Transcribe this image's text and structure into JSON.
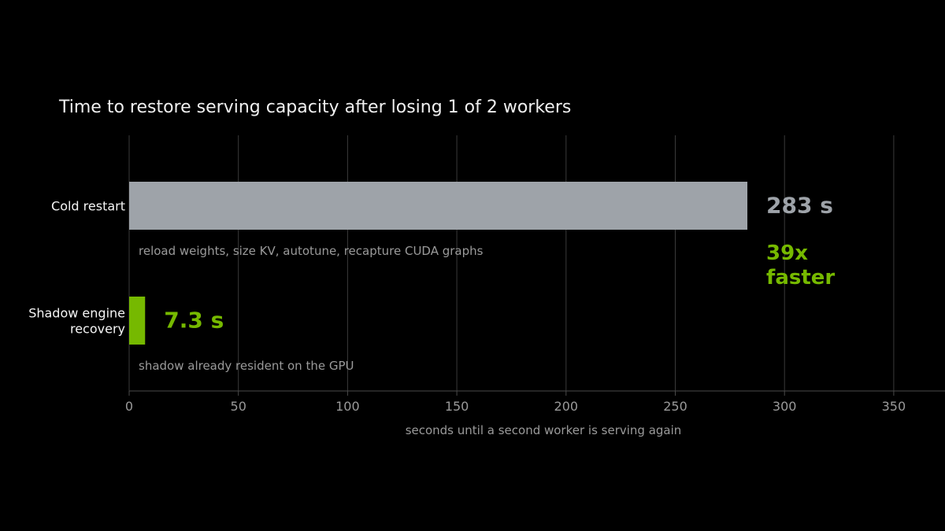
{
  "chart_data": {
    "type": "bar",
    "orientation": "horizontal",
    "title": "Time to restore serving capacity after losing 1 of 2 workers",
    "xlabel": "seconds until a second worker is serving again",
    "ylabel": "",
    "xlim": [
      0,
      375
    ],
    "xticks": [
      0,
      50,
      100,
      150,
      200,
      250,
      300,
      350
    ],
    "grid": true,
    "categories": [
      "Cold restart",
      "Shadow engine recovery"
    ],
    "category_lines": [
      [
        "Cold restart"
      ],
      [
        "Shadow engine",
        "recovery"
      ]
    ],
    "values": [
      283,
      7.3
    ],
    "value_labels": [
      "283 s",
      "7.3 s"
    ],
    "notes": [
      "reload weights, size KV, autotune, recapture CUDA graphs",
      "shadow already resident on the GPU"
    ],
    "colors": [
      "#9ea3a9",
      "#76b900"
    ],
    "value_label_colors": [
      "#9ea3a9",
      "#76b900"
    ],
    "annotation": {
      "lines": [
        "39x",
        "faster"
      ],
      "color": "#76b900"
    }
  }
}
